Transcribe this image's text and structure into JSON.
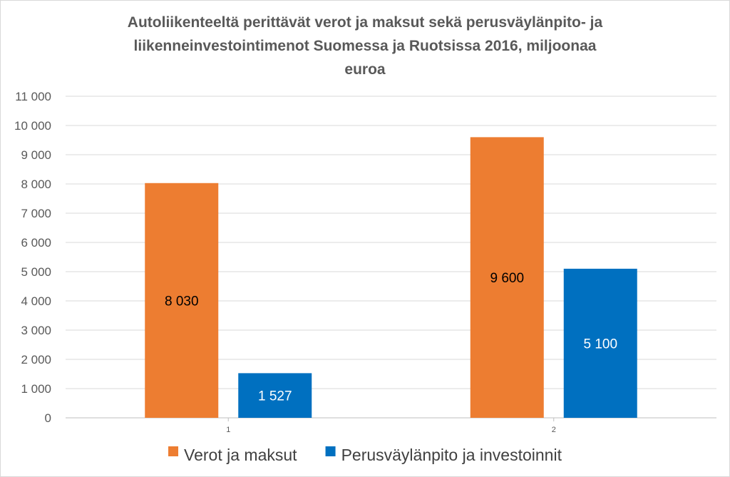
{
  "chart_data": {
    "type": "bar",
    "title_lines": [
      "Autoliikenteeltä perittävät verot ja maksut sekä perusväylänpito- ja",
      "liikenneinvestointimenot Suomessa ja Ruotsissa 2016, miljoonaa",
      "euroa"
    ],
    "categories": [
      "1",
      "2"
    ],
    "series": [
      {
        "name": "Verot ja maksut",
        "color": "#ED7D31",
        "label_color": "#000000",
        "values": [
          8030,
          9600
        ],
        "labels": [
          "8 030",
          "9 600"
        ]
      },
      {
        "name": "Perusväylänpito ja investoinnit",
        "color": "#0070C0",
        "label_color": "#ffffff",
        "values": [
          1527,
          5100
        ],
        "labels": [
          "1 527",
          "5 100"
        ]
      }
    ],
    "ylim": [
      0,
      11000
    ],
    "yticks": [
      {
        "value": 0,
        "label": "0"
      },
      {
        "value": 1000,
        "label": "1 000"
      },
      {
        "value": 2000,
        "label": "2 000"
      },
      {
        "value": 3000,
        "label": "3 000"
      },
      {
        "value": 4000,
        "label": "4 000"
      },
      {
        "value": 5000,
        "label": "5 000"
      },
      {
        "value": 6000,
        "label": "6 000"
      },
      {
        "value": 7000,
        "label": "7 000"
      },
      {
        "value": 8000,
        "label": "8 000"
      },
      {
        "value": 9000,
        "label": "9 000"
      },
      {
        "value": 10000,
        "label": "10 000"
      },
      {
        "value": 11000,
        "label": "11 000"
      }
    ],
    "grid": true,
    "legend_position": "bottom",
    "gridline_color": "#d9d9d9",
    "axis_color": "#bfbfbf"
  }
}
